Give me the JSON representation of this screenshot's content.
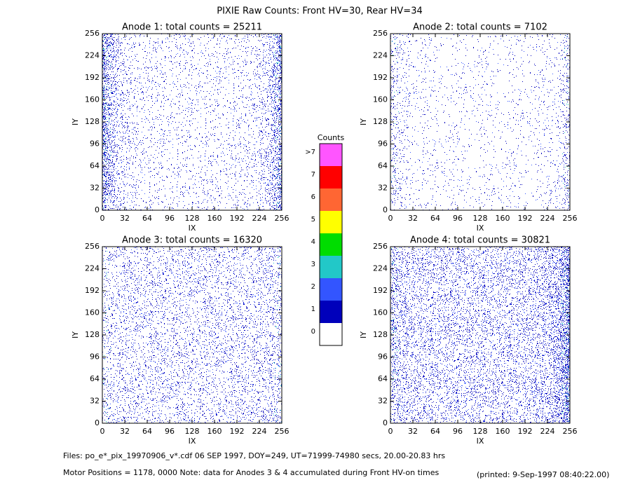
{
  "chart_data": {
    "type": "heatmap",
    "title": "PIXIE Raw Counts:  Front HV=30, Rear HV=34",
    "panels": [
      {
        "title": "Anode 1: total counts = 25211",
        "xlabel": "IX",
        "ylabel": "IY",
        "xlim": [
          0,
          256
        ],
        "ylim": [
          0,
          256
        ],
        "xticks": [
          0,
          32,
          64,
          96,
          128,
          160,
          192,
          224,
          256
        ],
        "yticks": [
          0,
          32,
          64,
          96,
          128,
          160,
          192,
          224,
          256
        ]
      },
      {
        "title": "Anode 2: total counts = 7102",
        "xlabel": "IX",
        "ylabel": "IY",
        "xlim": [
          0,
          256
        ],
        "ylim": [
          0,
          256
        ],
        "xticks": [
          0,
          32,
          64,
          96,
          128,
          160,
          192,
          224,
          256
        ],
        "yticks": [
          0,
          32,
          64,
          96,
          128,
          160,
          192,
          224,
          256
        ]
      },
      {
        "title": "Anode 3: total counts = 16320",
        "xlabel": "IX",
        "ylabel": "IY",
        "xlim": [
          0,
          256
        ],
        "ylim": [
          0,
          256
        ],
        "xticks": [
          0,
          32,
          64,
          96,
          128,
          160,
          192,
          224,
          256
        ],
        "yticks": [
          0,
          32,
          64,
          96,
          128,
          160,
          192,
          224,
          256
        ]
      },
      {
        "title": "Anode 4: total counts = 30821",
        "xlabel": "IX",
        "ylabel": "IY",
        "xlim": [
          0,
          256
        ],
        "ylim": [
          0,
          256
        ],
        "xticks": [
          0,
          32,
          64,
          96,
          128,
          160,
          192,
          224,
          256
        ],
        "yticks": [
          0,
          32,
          64,
          96,
          128,
          160,
          192,
          224,
          256
        ]
      }
    ],
    "colorbar": {
      "title": "Counts",
      "levels": [
        {
          "label": ">7",
          "color": "#ff55ff"
        },
        {
          "label": "7",
          "color": "#ff0000"
        },
        {
          "label": "6",
          "color": "#ff6633"
        },
        {
          "label": "5",
          "color": "#ffff00"
        },
        {
          "label": "4",
          "color": "#00dd00"
        },
        {
          "label": "3",
          "color": "#22c8c8"
        },
        {
          "label": "2",
          "color": "#3355ff"
        },
        {
          "label": "1",
          "color": "#0000bb"
        },
        {
          "label": "0",
          "color": "#ffffff"
        }
      ]
    },
    "footer": {
      "files": "Files: po_e*_pix_19970906_v*.cdf    06 SEP 1997, DOY=249, UT=71999-74980 secs, 20.00-20.83 hrs",
      "motor": "Motor Positions = 1178, 0000   Note: data for Anodes 3 & 4 accumulated during Front HV-on times",
      "printed": "(printed:  9-Sep-1997 08:40:22.00)"
    }
  }
}
